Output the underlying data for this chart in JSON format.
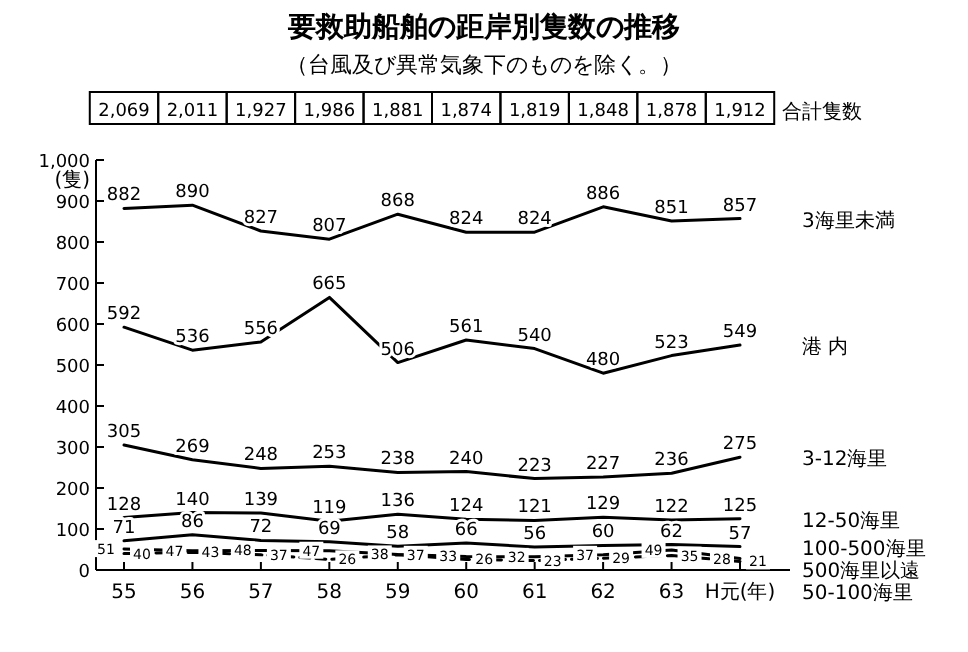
{
  "chart_data": {
    "type": "line",
    "title": "要救助船舶の距岸別隻数の推移",
    "subtitle": "（台風及び異常気象下のものを除く。）",
    "categories": [
      "55",
      "56",
      "57",
      "58",
      "59",
      "60",
      "61",
      "62",
      "63",
      "H元(年)"
    ],
    "ylabel": "(隻)",
    "ylim": [
      0,
      1000
    ],
    "yticks": [
      0,
      100,
      200,
      300,
      400,
      500,
      600,
      700,
      800,
      900,
      {
        "value": 1000,
        "label": "1,000"
      }
    ],
    "totals": [
      "2,069",
      "2,011",
      "1,927",
      "1,986",
      "1,881",
      "1,874",
      "1,819",
      "1,848",
      "1,878",
      "1,912"
    ],
    "annotations": [
      "合計隻数"
    ],
    "data_labels": true,
    "marker": "none",
    "grid": false,
    "legend": false,
    "series": [
      {
        "name": "3海里未満",
        "color": "#000000",
        "values": [
          882,
          890,
          827,
          807,
          868,
          824,
          824,
          886,
          851,
          857
        ]
      },
      {
        "name": "港 内",
        "color": "#000000",
        "values": [
          592,
          536,
          556,
          665,
          506,
          561,
          540,
          480,
          523,
          549
        ]
      },
      {
        "name": "3-12海里",
        "color": "#000000",
        "values": [
          305,
          269,
          248,
          253,
          238,
          240,
          223,
          227,
          236,
          275
        ]
      },
      {
        "name": "12-50海里",
        "color": "#000000",
        "values": [
          128,
          140,
          139,
          119,
          136,
          124,
          121,
          129,
          122,
          125
        ]
      },
      {
        "name": "100-500海里",
        "color": "#000000",
        "values": [
          71,
          86,
          72,
          69,
          58,
          66,
          56,
          60,
          62,
          57
        ]
      },
      {
        "name": "500海里以遠",
        "color": "#000000",
        "values": [
          51,
          47,
          48,
          47,
          38,
          33,
          32,
          37,
          49,
          28
        ]
      },
      {
        "name": "50-100海里",
        "color": "#000000",
        "line_style": "dashed",
        "values": [
          40,
          43,
          37,
          26,
          37,
          26,
          23,
          29,
          35,
          21
        ]
      }
    ]
  }
}
